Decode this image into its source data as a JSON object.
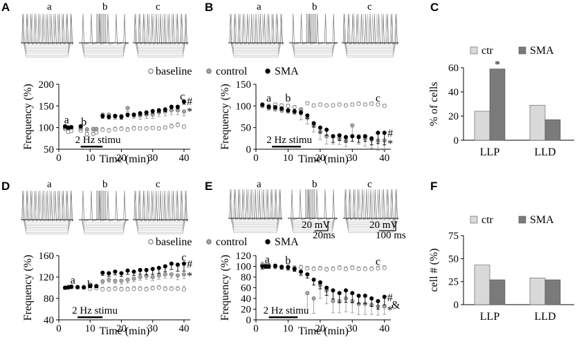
{
  "panels": {
    "A": {
      "label": "A",
      "trace_labels": [
        "a",
        "b",
        "c"
      ]
    },
    "B": {
      "label": "B",
      "trace_labels": [
        "a",
        "b",
        "c"
      ]
    },
    "C": {
      "label": "C"
    },
    "D": {
      "label": "D",
      "trace_labels": [
        "a",
        "b",
        "c"
      ]
    },
    "E": {
      "label": "E",
      "trace_labels": [
        "a",
        "b",
        "c"
      ],
      "scalebars": [
        {
          "v": "20 mV",
          "t": "20ms"
        },
        {
          "v": "20 mV",
          "t": "100 ms"
        }
      ]
    },
    "F": {
      "label": "F"
    }
  },
  "legend_top": {
    "baseline": "baseline",
    "control": "control",
    "sma": "SMA"
  },
  "legend_bottom": {
    "baseline": "baseline",
    "control": "control",
    "sma": "SMA"
  },
  "colors": {
    "baseline_marker": "#ffffff",
    "control_marker": "#a6a6a6",
    "sma_marker": "#000000",
    "ctr_bar": "#d9d9d9",
    "sma_bar": "#7a7a7a",
    "trace": "#a8a8a8"
  },
  "chart_data": [
    {
      "id": "A",
      "type": "scatter",
      "xlabel": "Time (min)",
      "ylabel": "Frequency (%)",
      "xlim": [
        0,
        42
      ],
      "ylim": [
        50,
        200
      ],
      "xticks": [
        0,
        10,
        20,
        30,
        40
      ],
      "yticks": [
        50,
        100,
        150,
        200
      ],
      "stim": {
        "label": "2 Hz stimu",
        "x0": 7,
        "x1": 14
      },
      "annotations": [
        {
          "text": "a",
          "x": 2.5,
          "y": 118
        },
        {
          "text": "b",
          "x": 8,
          "y": 113
        },
        {
          "text": "c",
          "x": 39.5,
          "y": 172
        },
        {
          "text": "#",
          "x": 41.8,
          "y": 160
        },
        {
          "text": "*",
          "x": 41.8,
          "y": 137
        }
      ],
      "series": [
        {
          "name": "baseline",
          "x": [
            2,
            3,
            4,
            7,
            9,
            11,
            12,
            14,
            16,
            18,
            20,
            22,
            24,
            26,
            28,
            30,
            32,
            34,
            36,
            38,
            40
          ],
          "y": [
            97,
            90,
            92,
            93,
            85,
            85,
            89,
            95,
            93,
            96,
            97,
            95,
            98,
            98,
            98,
            99,
            98,
            100,
            103,
            106,
            102
          ],
          "err": [
            4,
            4,
            5,
            4,
            4,
            4,
            4,
            5,
            5,
            5,
            5,
            5,
            5,
            4,
            4,
            4,
            4,
            4,
            5,
            5,
            4
          ]
        },
        {
          "name": "control",
          "x": [
            2,
            3,
            4,
            7,
            9,
            11,
            12,
            14,
            16,
            18,
            20,
            22,
            24,
            26,
            28,
            30,
            32,
            34,
            36,
            38,
            40
          ],
          "y": [
            100,
            100,
            101,
            98,
            96,
            97,
            97,
            130,
            130,
            127,
            127,
            145,
            130,
            128,
            130,
            130,
            135,
            137,
            140,
            140,
            137
          ],
          "err": [
            4,
            4,
            4,
            4,
            4,
            5,
            5,
            9,
            8,
            8,
            8,
            8,
            9,
            9,
            9,
            9,
            9,
            10,
            10,
            10,
            10
          ]
        },
        {
          "name": "SMA",
          "x": [
            2,
            3,
            4,
            7,
            14,
            16,
            18,
            20,
            22,
            24,
            26,
            28,
            30,
            32,
            34,
            36,
            38,
            40
          ],
          "y": [
            103,
            100,
            101,
            103,
            127,
            125,
            127,
            125,
            130,
            130,
            133,
            135,
            138,
            140,
            142,
            148,
            148,
            160
          ],
          "err": [
            4,
            4,
            4,
            4,
            5,
            5,
            5,
            5,
            5,
            5,
            5,
            5,
            5,
            5,
            5,
            5,
            5,
            6
          ]
        }
      ]
    },
    {
      "id": "B",
      "type": "scatter",
      "xlabel": "Time (min)",
      "ylabel": "Frequency (%)",
      "xlim": [
        0,
        42
      ],
      "ylim": [
        0,
        150
      ],
      "xticks": [
        0,
        10,
        20,
        30,
        40
      ],
      "yticks": [
        0,
        50,
        100,
        150
      ],
      "stim": {
        "label": "2 Hz stimu",
        "x0": 5,
        "x1": 14
      },
      "annotations": [
        {
          "text": "a",
          "x": 4,
          "y": 118
        },
        {
          "text": "b",
          "x": 10,
          "y": 118
        },
        {
          "text": "c",
          "x": 38,
          "y": 118
        },
        {
          "text": "#",
          "x": 41.8,
          "y": 37
        },
        {
          "text": "*",
          "x": 41.8,
          "y": 13
        }
      ],
      "series": [
        {
          "name": "baseline",
          "x": [
            2,
            4,
            6,
            8,
            10,
            12,
            14,
            16,
            18,
            20,
            22,
            24,
            26,
            28,
            30,
            32,
            34,
            36,
            38,
            40
          ],
          "y": [
            103,
            100,
            103,
            101,
            100,
            97,
            91,
            106,
            101,
            103,
            101,
            101,
            103,
            101,
            103,
            105,
            103,
            105,
            103,
            100
          ],
          "err": [
            4,
            4,
            4,
            4,
            4,
            4,
            4,
            4,
            4,
            4,
            4,
            4,
            4,
            4,
            4,
            4,
            4,
            4,
            4,
            4
          ]
        },
        {
          "name": "control",
          "x": [
            2,
            4,
            6,
            8,
            10,
            12,
            14,
            16,
            18,
            20,
            22,
            24,
            26,
            28,
            30,
            32,
            34,
            36,
            38,
            40
          ],
          "y": [
            100,
            95,
            93,
            90,
            88,
            86,
            92,
            72,
            55,
            40,
            30,
            30,
            25,
            20,
            55,
            30,
            25,
            22,
            20,
            20
          ],
          "err": [
            4,
            5,
            5,
            5,
            5,
            6,
            24,
            14,
            15,
            18,
            18,
            18,
            14,
            14,
            28,
            18,
            18,
            20,
            22,
            22
          ]
        },
        {
          "name": "SMA",
          "x": [
            2,
            4,
            6,
            8,
            10,
            12,
            14,
            16,
            18,
            20,
            22,
            24,
            26,
            28,
            30,
            32,
            34,
            36,
            38,
            40
          ],
          "y": [
            103,
            98,
            97,
            94,
            90,
            88,
            85,
            78,
            60,
            50,
            45,
            30,
            32,
            28,
            30,
            28,
            30,
            25,
            38,
            38
          ],
          "err": [
            4,
            4,
            4,
            4,
            4,
            5,
            5,
            7,
            9,
            12,
            13,
            14,
            12,
            12,
            12,
            12,
            12,
            15,
            25,
            28
          ]
        }
      ]
    },
    {
      "id": "C",
      "type": "bar",
      "ylabel": "% of cells",
      "categories": [
        "LLP",
        "LLD"
      ],
      "ylim": [
        0,
        60
      ],
      "yticks": [
        0,
        20,
        40,
        60
      ],
      "series": [
        {
          "name": "ctr",
          "values": [
            24,
            29
          ]
        },
        {
          "name": "SMA",
          "values": [
            59,
            17
          ]
        }
      ],
      "annotations": [
        {
          "text": "*",
          "category": "LLP",
          "series": "SMA",
          "y": 62
        }
      ]
    },
    {
      "id": "D",
      "type": "scatter",
      "xlabel": "Time (min)",
      "ylabel": "Frequency (%)",
      "xlim": [
        0,
        42
      ],
      "ylim": [
        40,
        160
      ],
      "xticks": [
        0,
        10,
        20,
        30,
        40
      ],
      "yticks": [
        40,
        80,
        120,
        160
      ],
      "stim": {
        "label": "2 Hz stimu",
        "x0": 6,
        "x1": 14
      },
      "annotations": [
        {
          "text": "a",
          "x": 4.5,
          "y": 114
        },
        {
          "text": "b",
          "x": 10,
          "y": 106
        },
        {
          "text": "c",
          "x": 40,
          "y": 157
        },
        {
          "text": "#",
          "x": 41.8,
          "y": 144
        },
        {
          "text": "*",
          "x": 41.8,
          "y": 122
        }
      ],
      "series": [
        {
          "name": "baseline",
          "x": [
            2,
            3,
            4,
            6,
            8,
            10,
            12,
            14,
            16,
            18,
            20,
            22,
            24,
            26,
            28,
            30,
            32,
            34,
            36,
            38,
            40
          ],
          "y": [
            100,
            100,
            102,
            101,
            100,
            98,
            99,
            97,
            97,
            98,
            97,
            97,
            98,
            98,
            97,
            99,
            100,
            98,
            98,
            98,
            97
          ],
          "err": [
            3,
            3,
            3,
            3,
            3,
            3,
            3,
            4,
            4,
            4,
            4,
            4,
            4,
            4,
            4,
            4,
            4,
            4,
            4,
            4,
            6
          ]
        },
        {
          "name": "control",
          "x": [
            2,
            3,
            4,
            6,
            8,
            10,
            12,
            14,
            16,
            18,
            20,
            22,
            24,
            26,
            28,
            30,
            32,
            34,
            36,
            38,
            40
          ],
          "y": [
            100,
            101,
            101,
            101,
            101,
            103,
            103,
            112,
            115,
            113,
            113,
            115,
            117,
            120,
            122,
            120,
            123,
            125,
            125,
            123,
            125
          ],
          "err": [
            3,
            3,
            3,
            3,
            3,
            3,
            3,
            5,
            5,
            5,
            6,
            6,
            6,
            6,
            6,
            7,
            7,
            7,
            7,
            8,
            8
          ]
        },
        {
          "name": "SMA",
          "x": [
            2,
            3,
            4,
            6,
            8,
            10,
            12,
            14,
            16,
            18,
            20,
            22,
            24,
            26,
            28,
            30,
            32,
            34,
            36,
            38,
            40
          ],
          "y": [
            100,
            101,
            102,
            101,
            101,
            103,
            103,
            128,
            127,
            130,
            127,
            132,
            130,
            133,
            133,
            135,
            137,
            140,
            145,
            143,
            145
          ],
          "err": [
            3,
            3,
            3,
            3,
            3,
            3,
            3,
            5,
            6,
            6,
            6,
            7,
            7,
            8,
            9,
            10,
            10,
            10,
            11,
            12,
            14
          ]
        }
      ]
    },
    {
      "id": "E",
      "type": "scatter",
      "xlabel": "Time (min)",
      "ylabel": "Frequency (%)",
      "xlim": [
        0,
        42
      ],
      "ylim": [
        0,
        120
      ],
      "xticks": [
        0,
        10,
        20,
        30,
        40
      ],
      "yticks": [
        0,
        20,
        40,
        60,
        80,
        100,
        120
      ],
      "stim": {
        "label": "2 Hz stimu",
        "x0": 4,
        "x1": 13
      },
      "annotations": [
        {
          "text": "a",
          "x": 3.5,
          "y": 113
        },
        {
          "text": "b",
          "x": 10,
          "y": 111
        },
        {
          "text": "c",
          "x": 38,
          "y": 109
        },
        {
          "text": "#",
          "x": 41.7,
          "y": 41
        },
        {
          "text": "&",
          "x": 43.5,
          "y": 28
        },
        {
          "text": "*",
          "x": 41.7,
          "y": 18
        }
      ],
      "series": [
        {
          "name": "baseline",
          "x": [
            2,
            3,
            4,
            6,
            8,
            10,
            12,
            14,
            16,
            18,
            20,
            22,
            24,
            26,
            28,
            30,
            32,
            34,
            36,
            38,
            40
          ],
          "y": [
            102,
            101,
            101,
            100,
            98,
            99,
            97,
            98,
            96,
            95,
            96,
            94,
            95,
            97,
            95,
            97,
            95,
            95,
            95,
            96,
            97
          ],
          "err": [
            6,
            4,
            4,
            4,
            4,
            4,
            4,
            4,
            4,
            4,
            4,
            4,
            4,
            4,
            4,
            4,
            4,
            4,
            4,
            4,
            4
          ]
        },
        {
          "name": "control",
          "x": [
            2,
            3,
            4,
            6,
            8,
            10,
            12,
            14,
            16,
            18,
            20,
            22,
            24,
            26,
            28,
            30,
            32,
            34,
            36,
            38,
            40
          ],
          "y": [
            103,
            101,
            102,
            100,
            99,
            98,
            96,
            90,
            50,
            40,
            65,
            55,
            35,
            35,
            40,
            35,
            30,
            30,
            28,
            25,
            25
          ],
          "err": [
            8,
            5,
            5,
            5,
            5,
            6,
            6,
            8,
            30,
            28,
            25,
            25,
            22,
            22,
            25,
            22,
            20,
            20,
            18,
            16,
            15
          ]
        },
        {
          "name": "SMA",
          "x": [
            2,
            3,
            4,
            6,
            8,
            10,
            12,
            14,
            16,
            18,
            20,
            22,
            24,
            26,
            28,
            30,
            32,
            34,
            36,
            38,
            40
          ],
          "y": [
            100,
            100,
            100,
            101,
            99,
            98,
            95,
            90,
            85,
            75,
            70,
            60,
            55,
            50,
            55,
            50,
            45,
            45,
            40,
            35,
            43
          ],
          "err": [
            5,
            4,
            4,
            4,
            4,
            4,
            4,
            6,
            7,
            10,
            12,
            14,
            16,
            18,
            22,
            18,
            15,
            15,
            15,
            15,
            15
          ]
        }
      ]
    },
    {
      "id": "F",
      "type": "bar",
      "ylabel": "cell # (%)",
      "categories": [
        "LLP",
        "LLD"
      ],
      "ylim": [
        0,
        75
      ],
      "yticks": [
        0,
        25,
        50,
        75
      ],
      "series": [
        {
          "name": "ctr",
          "values": [
            43,
            29
          ]
        },
        {
          "name": "SMA",
          "values": [
            27,
            27
          ]
        }
      ]
    }
  ]
}
